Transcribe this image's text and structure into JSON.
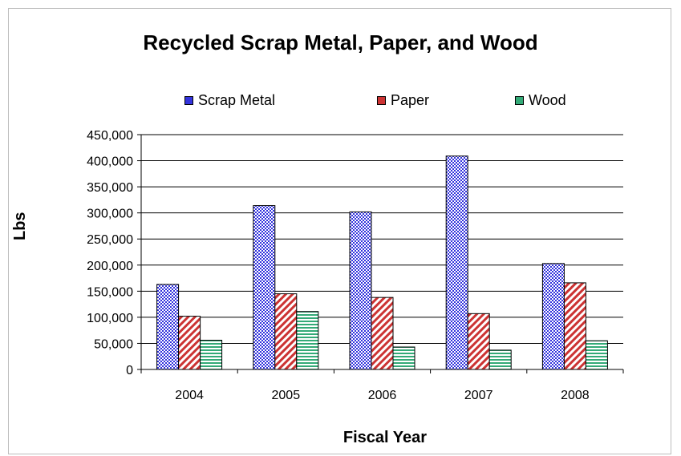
{
  "chart_data": {
    "type": "bar",
    "title": "Recycled Scrap Metal, Paper, and Wood",
    "xlabel": "Fiscal Year",
    "ylabel": "Lbs",
    "categories": [
      "2004",
      "2005",
      "2006",
      "2007",
      "2008"
    ],
    "series": [
      {
        "name": "Scrap Metal",
        "values": [
          163000,
          314000,
          302000,
          409000,
          203000
        ],
        "color": "#3333dd",
        "pattern": "checker"
      },
      {
        "name": "Paper",
        "values": [
          102000,
          145000,
          138000,
          107000,
          166000
        ],
        "color": "#cc3333",
        "pattern": "diagonal"
      },
      {
        "name": "Wood",
        "values": [
          56000,
          111000,
          43000,
          37000,
          55000
        ],
        "color": "#33aa77",
        "pattern": "horizontal"
      }
    ],
    "ylim": [
      0,
      450000
    ],
    "yticks": [
      "0",
      "50,000",
      "100,000",
      "150,000",
      "200,000",
      "250,000",
      "300,000",
      "350,000",
      "400,000",
      "450,000"
    ],
    "grid": true,
    "legend": "top"
  }
}
